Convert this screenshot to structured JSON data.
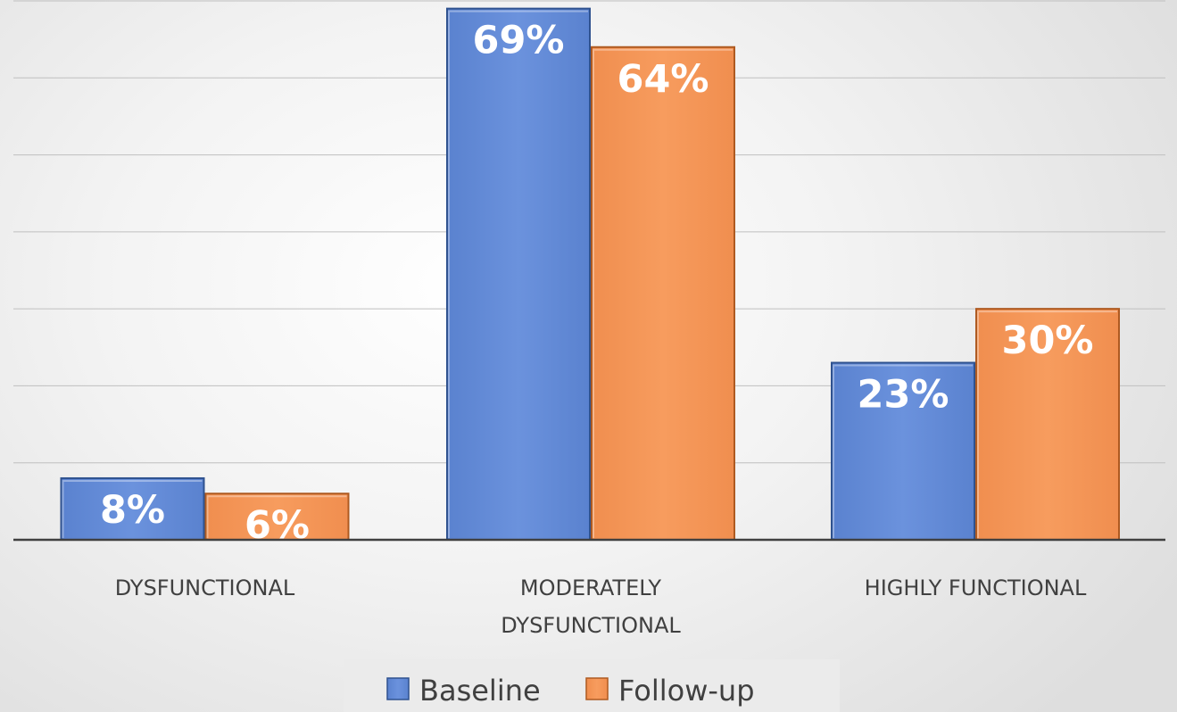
{
  "chart_data": {
    "type": "bar",
    "title": "",
    "xlabel": "",
    "ylabel": "",
    "categories": [
      [
        "DYSFUNCTIONAL"
      ],
      [
        "MODERATELY",
        "DYSFUNCTIONAL"
      ],
      [
        "HIGHLY FUNCTIONAL"
      ]
    ],
    "series": [
      {
        "name": "Baseline",
        "values": [
          8,
          69,
          23
        ],
        "labels": [
          "8%",
          "69%",
          "23%"
        ],
        "color": "#4472C4"
      },
      {
        "name": "Follow-up",
        "values": [
          6,
          64,
          30
        ],
        "labels": [
          "6%",
          "64%",
          "30%"
        ],
        "color": "#ED7D31"
      }
    ],
    "ylim": [
      0,
      70
    ],
    "y_gridlines": [
      0,
      10,
      20,
      30,
      40,
      50,
      60,
      70
    ],
    "unit": "%",
    "grid": true,
    "legend": "bottom"
  }
}
